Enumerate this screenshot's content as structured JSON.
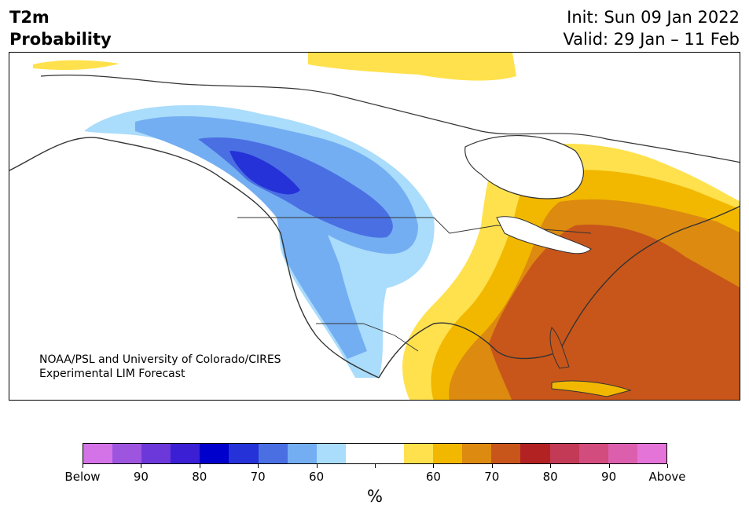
{
  "header": {
    "title_line1": "T2m",
    "title_line2": "Probability",
    "init_label": "Init: Sun 09 Jan 2022",
    "valid_label": "Valid: 29 Jan – 11 Feb"
  },
  "map": {
    "credit_line1": "NOAA/PSL and University of Colorado/CIRES",
    "credit_line2": "Experimental LIM Forecast"
  },
  "colorbar": {
    "colors": [
      "#d473e8",
      "#9d55e0",
      "#6d38d9",
      "#3a1fd4",
      "#0000cc",
      "#2432d8",
      "#4a6fe3",
      "#74aef2",
      "#aadcfb",
      "#ffffff",
      "#ffffff",
      "#ffe14d",
      "#f2b800",
      "#dd8a10",
      "#c8561a",
      "#b22222",
      "#c23a55",
      "#d24c7d",
      "#dc5fae",
      "#e474d8"
    ],
    "ticks": [
      "Below",
      "90",
      "80",
      "70",
      "60",
      "",
      "60",
      "70",
      "80",
      "90",
      "Above"
    ],
    "unit": "%"
  }
}
